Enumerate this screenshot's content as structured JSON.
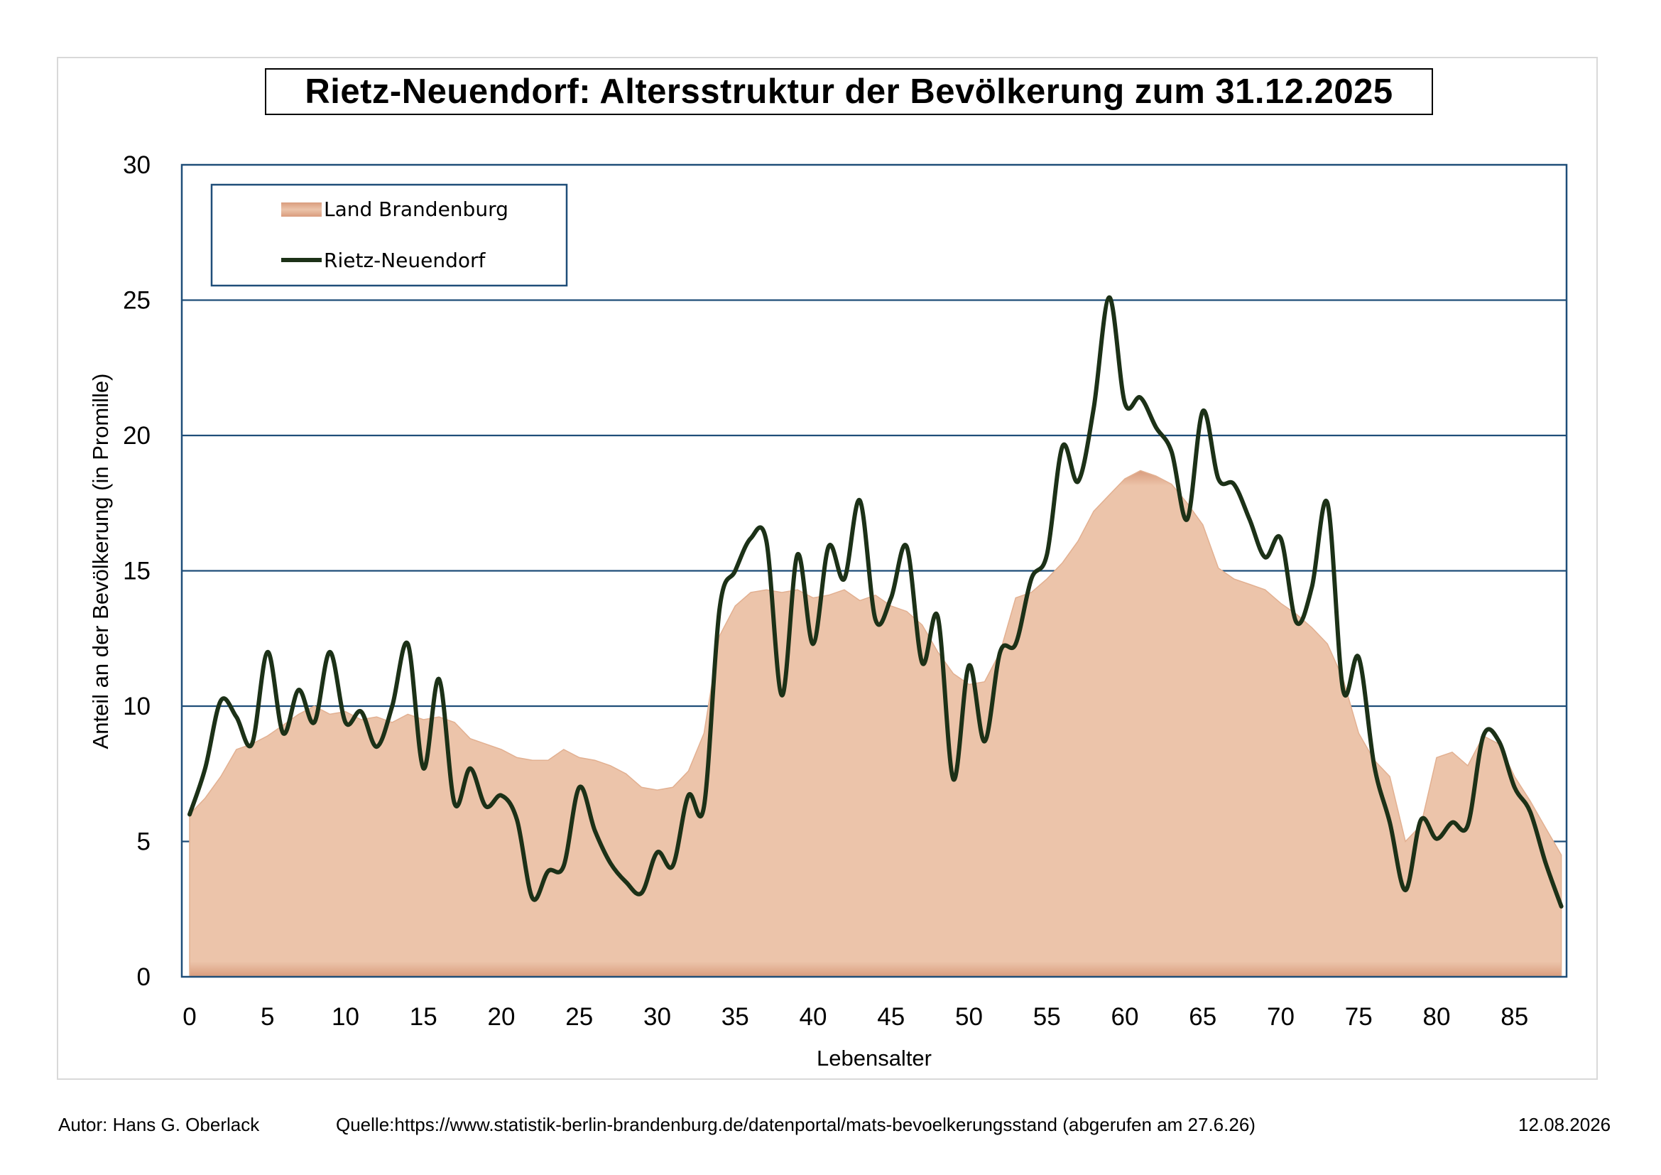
{
  "chart_data": {
    "type": "area",
    "title": "Rietz-Neuendorf: Altersstruktur der Bevölkerung zum 31.12.2025",
    "xlabel": "Lebensalter",
    "ylabel": "Anteil an der Bevölkerung (in Promille)",
    "xlim": [
      0,
      89
    ],
    "ylim": [
      0,
      30
    ],
    "x_ticks": [
      0,
      5,
      10,
      15,
      20,
      25,
      30,
      35,
      40,
      45,
      50,
      55,
      60,
      65,
      70,
      75,
      80,
      85
    ],
    "y_ticks": [
      0,
      5,
      10,
      15,
      20,
      25,
      30
    ],
    "grid": "horizontal",
    "legend_position": "top-left",
    "x": [
      0,
      1,
      2,
      3,
      4,
      5,
      6,
      7,
      8,
      9,
      10,
      11,
      12,
      13,
      14,
      15,
      16,
      17,
      18,
      19,
      20,
      21,
      22,
      23,
      24,
      25,
      26,
      27,
      28,
      29,
      30,
      31,
      32,
      33,
      34,
      35,
      36,
      37,
      38,
      39,
      40,
      41,
      42,
      43,
      44,
      45,
      46,
      47,
      48,
      49,
      50,
      51,
      52,
      53,
      54,
      55,
      56,
      57,
      58,
      59,
      60,
      61,
      62,
      63,
      64,
      65,
      66,
      67,
      68,
      69,
      70,
      71,
      72,
      73,
      74,
      75,
      76,
      77,
      78,
      79,
      80,
      81,
      82,
      83,
      84,
      85,
      86,
      87,
      88
    ],
    "series": [
      {
        "name": "Land Brandenburg",
        "type": "area",
        "color": "#ecc4aa",
        "values": [
          6.0,
          6.6,
          7.4,
          8.4,
          8.6,
          8.9,
          9.3,
          9.7,
          10.0,
          9.7,
          9.8,
          9.5,
          9.6,
          9.4,
          9.7,
          9.5,
          9.6,
          9.4,
          8.8,
          8.6,
          8.4,
          8.1,
          8.0,
          8.0,
          8.4,
          8.1,
          8.0,
          7.8,
          7.5,
          7.0,
          6.9,
          7.0,
          7.6,
          9.0,
          12.6,
          13.7,
          14.2,
          14.3,
          14.2,
          14.3,
          14.0,
          14.1,
          14.3,
          13.9,
          14.1,
          13.7,
          13.5,
          13.0,
          12.0,
          11.2,
          10.8,
          10.9,
          12.0,
          14.0,
          14.2,
          14.7,
          15.3,
          16.1,
          17.2,
          17.8,
          18.4,
          18.7,
          18.5,
          18.2,
          17.5,
          16.7,
          15.1,
          14.7,
          14.5,
          14.3,
          13.8,
          13.4,
          12.9,
          12.3,
          11.0,
          9.0,
          8.0,
          7.4,
          5.0,
          5.6,
          8.1,
          8.3,
          7.8,
          8.9,
          8.6,
          7.4,
          6.5,
          5.5,
          4.5
        ]
      },
      {
        "name": "Rietz-Neuendorf",
        "type": "line",
        "color": "#1c3117",
        "values": [
          6.0,
          7.7,
          10.2,
          9.6,
          8.6,
          12.0,
          9.0,
          10.6,
          9.4,
          12.0,
          9.4,
          9.8,
          8.5,
          10.0,
          12.3,
          7.7,
          11.0,
          6.4,
          7.7,
          6.3,
          6.7,
          5.8,
          2.9,
          3.9,
          4.1,
          7.0,
          5.4,
          4.2,
          3.5,
          3.1,
          4.6,
          4.1,
          6.7,
          6.3,
          13.6,
          15.0,
          16.2,
          16.1,
          10.4,
          15.6,
          12.3,
          15.9,
          14.7,
          17.6,
          13.2,
          14.0,
          15.9,
          11.6,
          13.3,
          7.3,
          11.5,
          8.7,
          12.0,
          12.3,
          14.7,
          15.6,
          19.6,
          18.3,
          21.0,
          25.1,
          21.2,
          21.4,
          20.3,
          19.4,
          16.9,
          20.9,
          18.4,
          18.2,
          16.9,
          15.5,
          16.2,
          13.1,
          14.4,
          17.5,
          10.6,
          11.8,
          7.8,
          5.7,
          3.2,
          5.8,
          5.1,
          5.7,
          5.6,
          8.9,
          8.7,
          7.0,
          6.1,
          4.2,
          2.6
        ]
      }
    ]
  },
  "footer": {
    "author": "Autor: Hans G. Oberlack",
    "source": "Quelle:https://www.statistik-berlin-brandenburg.de/datenportal/mats-bevoelkerungsstand (abgerufen am 27.6.26)",
    "date": "12.08.2026"
  }
}
